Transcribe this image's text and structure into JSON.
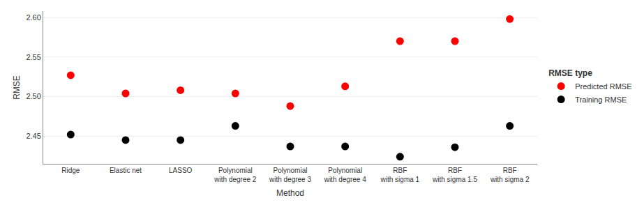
{
  "chart_data": {
    "type": "scatter",
    "categories": [
      "Ridge",
      "Elastic net",
      "LASSO",
      "Polynomial\nwith degree 2",
      "Polynomial\nwith degree 3",
      "Polynomial\nwith degree 4",
      "RBF\nwith sigma 1",
      "RBF\nwith sigma 1.5",
      "RBF\nwith sigma 2"
    ],
    "series": [
      {
        "name": "Predicted RMSE",
        "color": "#FF0000",
        "marker": "circle",
        "values": [
          2.527,
          2.504,
          2.508,
          2.504,
          2.488,
          2.513,
          2.57,
          2.57,
          2.598
        ]
      },
      {
        "name": "Training RMSE",
        "color": "#000000",
        "marker": "circle",
        "values": [
          2.452,
          2.445,
          2.445,
          2.463,
          2.437,
          2.437,
          2.424,
          2.436,
          2.463
        ]
      }
    ],
    "xlabel": "Method",
    "ylabel": "RMSE",
    "legend_title": "RMSE type",
    "ylim": [
      2.415,
      2.608
    ],
    "yticks": [
      2.45,
      {
        "value": 2.5,
        "label": "2.50"
      },
      2.55,
      {
        "value": 2.6,
        "label": "2.60"
      }
    ],
    "grid": true,
    "legend": "right"
  }
}
